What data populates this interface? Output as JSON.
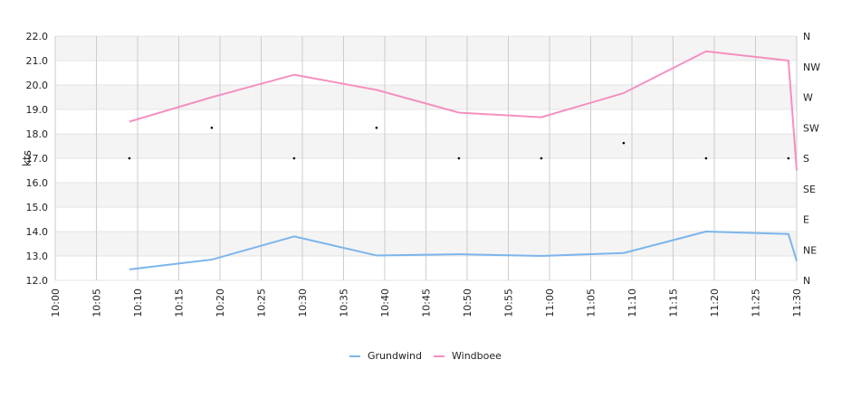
{
  "chart_data": {
    "type": "line",
    "title": "",
    "ylabel": "kts",
    "ylim": [
      12,
      22
    ],
    "yticks": [
      "12.0",
      "13.0",
      "14.0",
      "15.0",
      "16.0",
      "17.0",
      "18.0",
      "19.0",
      "20.0",
      "21.0",
      "22.0"
    ],
    "xticks": [
      "10:00",
      "10:05",
      "10:10",
      "10:15",
      "10:20",
      "10:25",
      "10:30",
      "10:35",
      "10:40",
      "10:45",
      "10:50",
      "10:55",
      "11:00",
      "11:05",
      "11:10",
      "11:15",
      "11:20",
      "11:25",
      "11:30"
    ],
    "xrange_minutes": [
      0,
      90
    ],
    "right_axis": {
      "labels": [
        "N",
        "NE",
        "E",
        "SE",
        "S",
        "SW",
        "W",
        "NW",
        "N"
      ],
      "range_degrees": [
        0,
        360
      ]
    },
    "series": [
      {
        "name": "Grundwind",
        "color": "#7cb5ec",
        "x": [
          9,
          19,
          29,
          39,
          49,
          59,
          69,
          79,
          89,
          90
        ],
        "values": [
          12.45,
          12.85,
          13.8,
          13.02,
          13.07,
          13.0,
          13.12,
          14.0,
          13.9,
          12.8
        ]
      },
      {
        "name": "Windboee",
        "color": "#f490c0",
        "x": [
          9,
          19,
          29,
          39,
          49,
          59,
          69,
          79,
          89,
          90
        ],
        "values": [
          18.5,
          19.5,
          20.42,
          19.8,
          18.87,
          18.68,
          19.67,
          21.38,
          21.0,
          16.5
        ]
      }
    ],
    "direction": {
      "x": [
        9,
        19,
        29,
        39,
        49,
        59,
        69,
        79,
        89
      ],
      "degrees": [
        180,
        225,
        180,
        225,
        180,
        180,
        202.5,
        180,
        180
      ]
    },
    "legend_position": "bottom"
  }
}
